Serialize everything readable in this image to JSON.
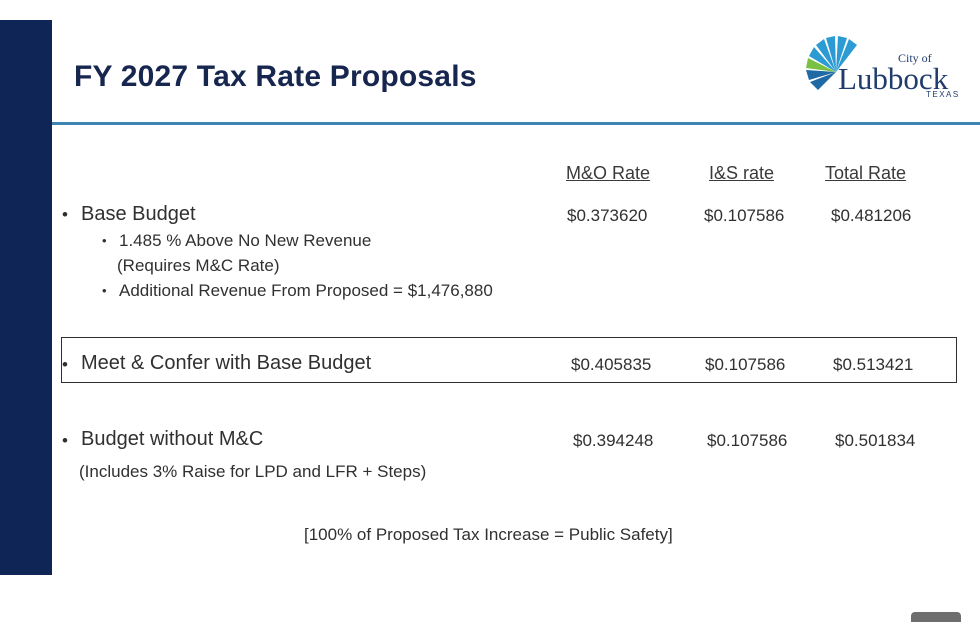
{
  "slide": {
    "title": "FY 2027 Tax Rate Proposals",
    "logo": {
      "city_of": "City of",
      "name": "Lubbock",
      "state": "TEXAS",
      "colors": [
        "#2c9bd3",
        "#7ac143",
        "#1f3c6c"
      ]
    }
  },
  "table": {
    "headers": {
      "mo": "M&O Rate",
      "is": "I&S rate",
      "total": "Total Rate"
    },
    "base": {
      "bullet": "•",
      "label": "Base Budget",
      "mo": "$0.373620",
      "is": "$0.107586",
      "total": "$0.481206",
      "sub1": "1.485 % Above No New Revenue",
      "sub1b": "(Requires M&C Rate)",
      "sub2": "Additional Revenue From Proposed = $1,476,880"
    },
    "meet": {
      "bullet": "•",
      "label": "Meet & Confer with Base Budget",
      "mo": "$0.405835",
      "is": "$0.107586",
      "total": "$0.513421"
    },
    "without": {
      "bullet": "•",
      "label": "Budget without M&C",
      "mo": "$0.394248",
      "is": "$0.107586",
      "total": "$0.501834",
      "note": "(Includes 3% Raise for LPD and LFR + Steps)"
    }
  },
  "footnote": "[100% of Proposed Tax Increase = Public Safety]"
}
